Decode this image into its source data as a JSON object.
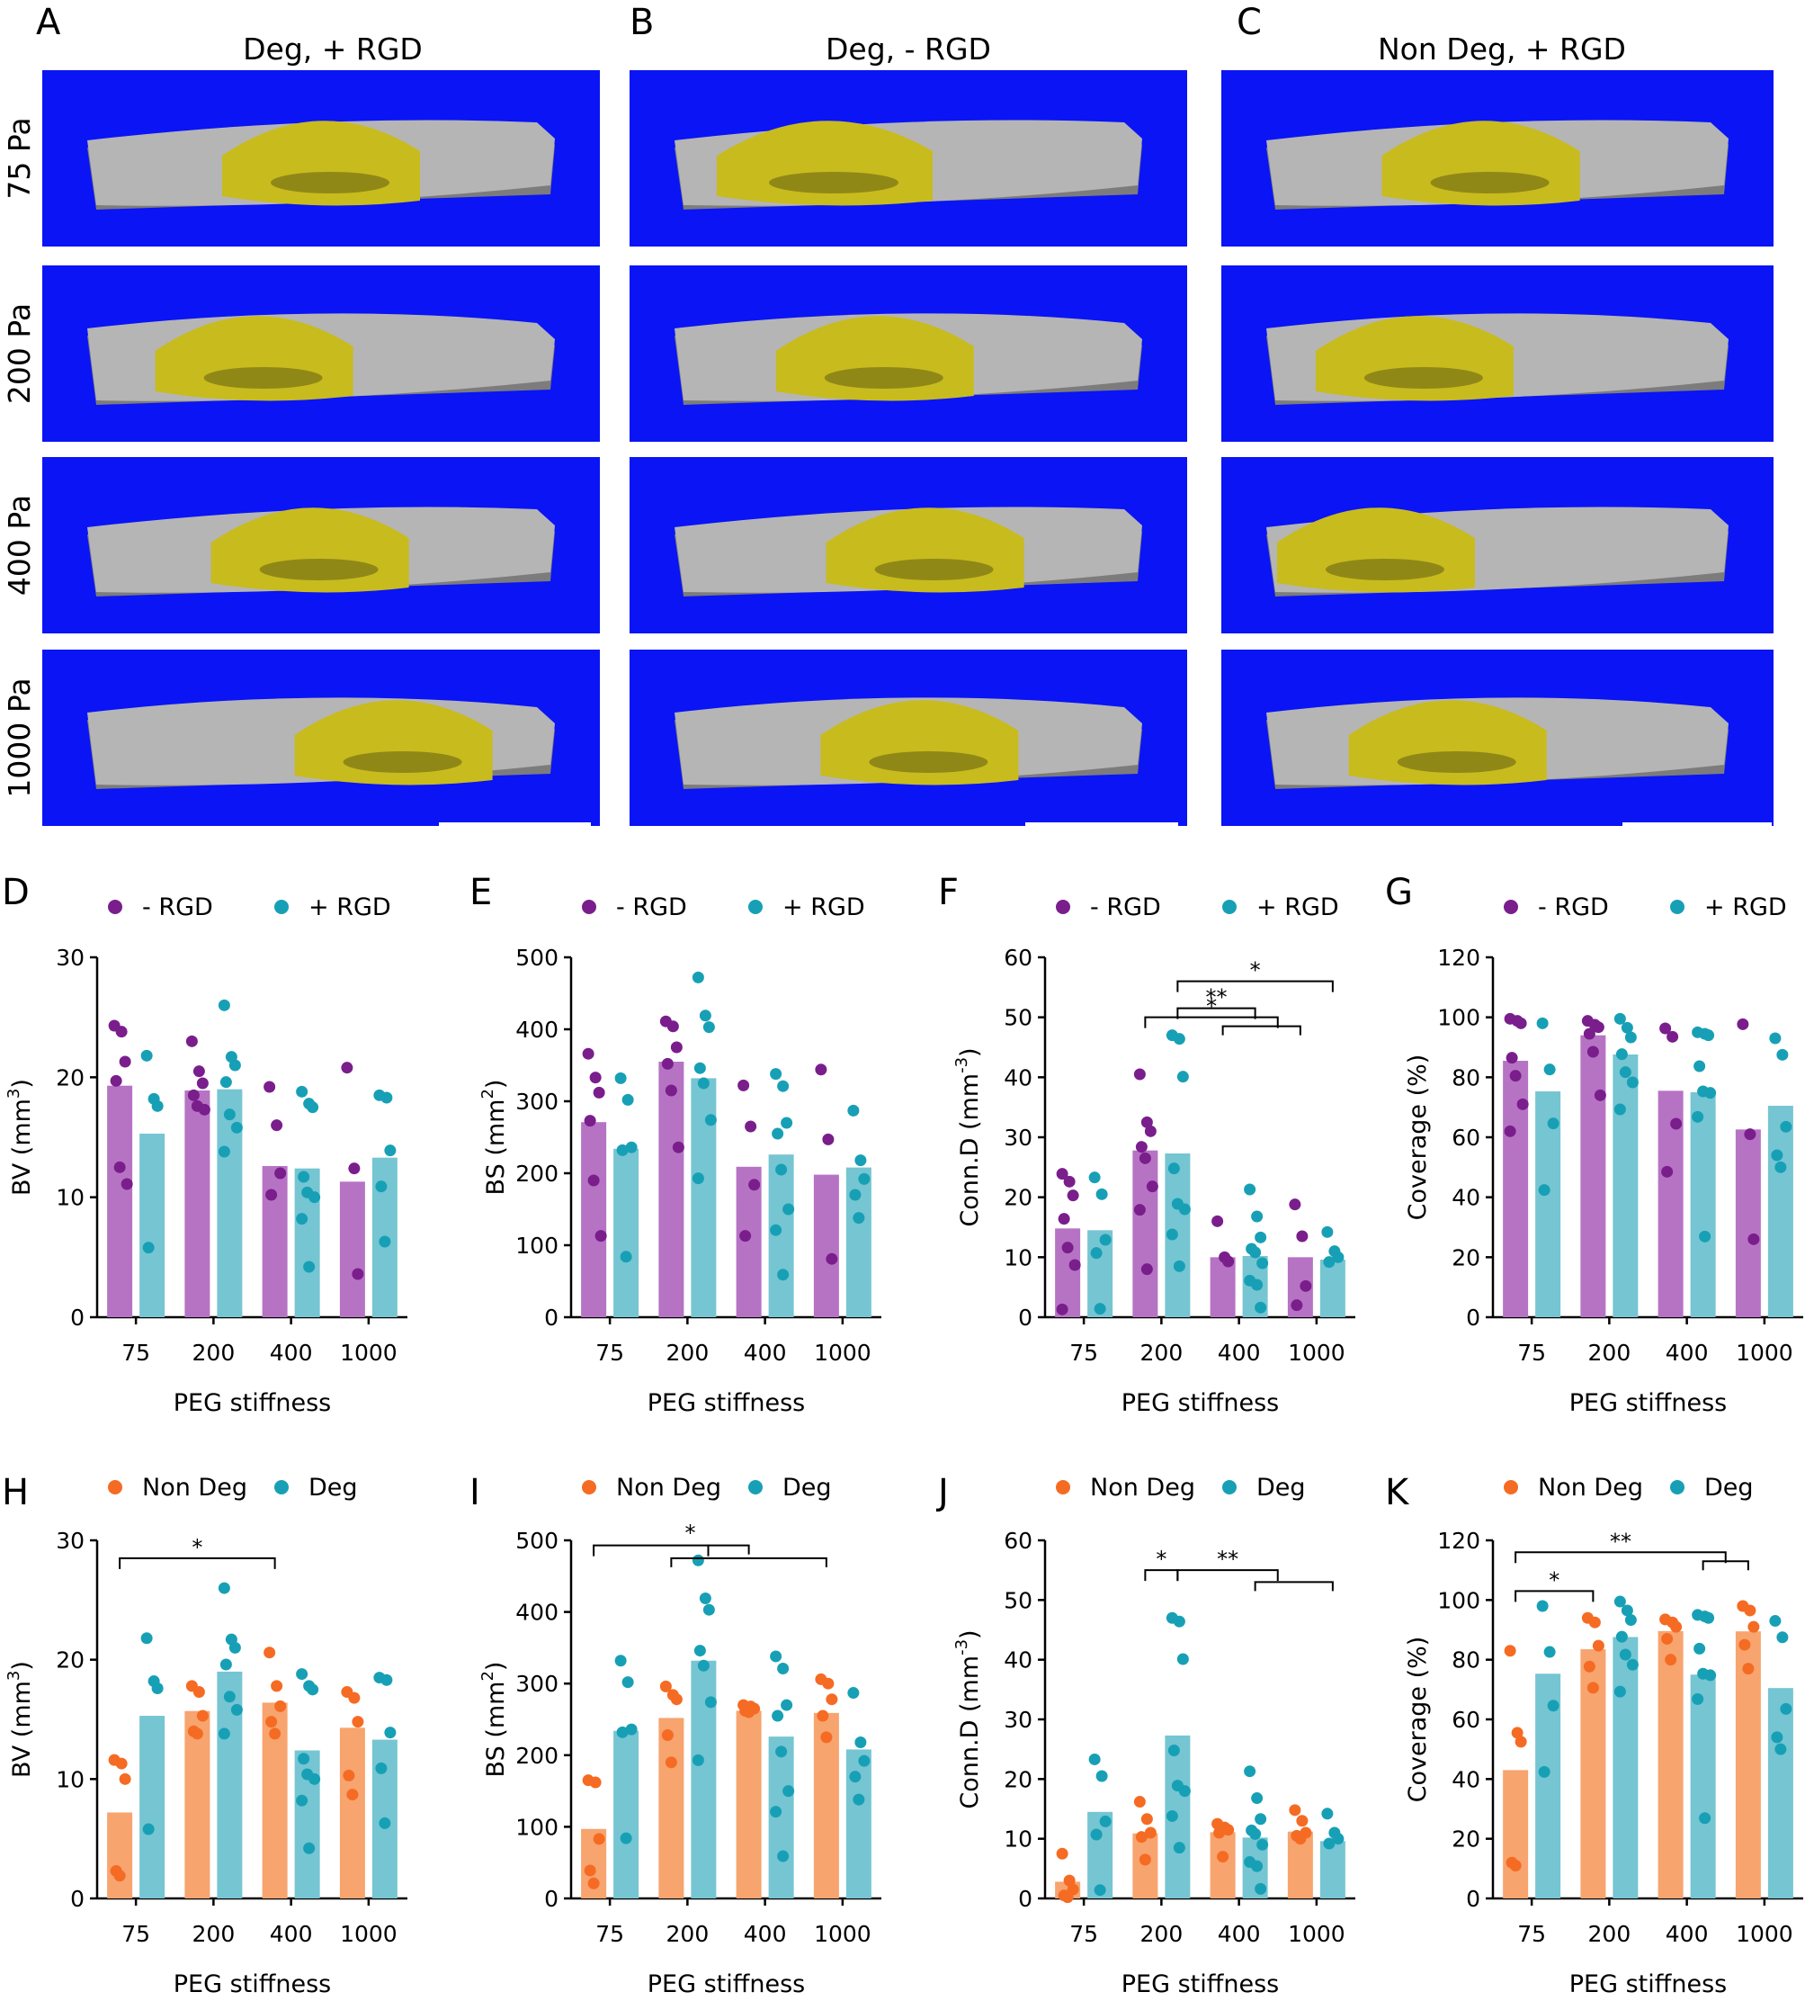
{
  "top": {
    "panel_letters": [
      "A",
      "B",
      "C"
    ],
    "column_titles": [
      "Deg, + RGD",
      "Deg, - RGD",
      "Non Deg, + RGD"
    ],
    "row_labels": [
      "75 Pa",
      "200 Pa",
      "400 Pa",
      "1000 Pa"
    ],
    "colors": {
      "background": "#0a14f5",
      "bone": "#b5b5b5",
      "bone_dark": "#7c7c7c",
      "newbone": "#c8bb1e",
      "newbone_dark": "#6b6510"
    }
  },
  "colors": {
    "purple": "#7a1e8c",
    "purple_bar": "#b673c4",
    "teal": "#17a0b5",
    "teal_bar": "#76c5d2",
    "orange": "#f56b23",
    "orange_bar": "#f7a46f"
  },
  "chart_data": [
    {
      "panel": "D",
      "type": "bar",
      "ylabel": "BV (mm",
      "ysup": "3",
      "ysuffix": ")",
      "xlabel": "PEG stiffness",
      "categories": [
        "75",
        "200",
        "400",
        "1000"
      ],
      "ylim": [
        0,
        30
      ],
      "yticks": [
        0,
        10,
        20,
        30
      ],
      "series": [
        {
          "name": "- RGD",
          "color": "purple",
          "values": [
            19.3,
            18.9,
            12.6,
            11.3
          ],
          "points": [
            [
              24.3,
              23.8,
              21.3,
              19.7,
              12.5,
              11.1
            ],
            [
              23.0,
              20.5,
              19.5,
              18.5,
              17.6,
              17.3
            ],
            [
              19.2,
              16.0,
              12.0,
              10.2
            ],
            [
              20.8,
              12.4,
              3.6
            ]
          ]
        },
        {
          "name": "+ RGD",
          "color": "teal",
          "values": [
            15.3,
            19.0,
            12.4,
            13.3
          ],
          "points": [
            [
              21.8,
              18.2,
              17.6,
              5.8
            ],
            [
              26.0,
              21.7,
              21.0,
              19.6,
              16.9,
              15.8,
              13.8
            ],
            [
              18.8,
              17.8,
              17.5,
              11.7,
              10.4,
              10.0,
              8.2,
              4.2
            ],
            [
              18.5,
              18.3,
              13.9,
              10.9,
              6.3
            ]
          ]
        }
      ],
      "brackets": []
    },
    {
      "panel": "E",
      "type": "bar",
      "ylabel": "BS (mm",
      "ysup": "2",
      "ysuffix": ")",
      "xlabel": "PEG stiffness",
      "categories": [
        "75",
        "200",
        "400",
        "1000"
      ],
      "ylim": [
        0,
        500
      ],
      "yticks": [
        0,
        100,
        200,
        300,
        400,
        500
      ],
      "series": [
        {
          "name": "- RGD",
          "color": "purple",
          "values": [
            271,
            355,
            209,
            198
          ],
          "points": [
            [
              366,
              333,
              312,
              273,
              190,
              113
            ],
            [
              411,
              404,
              375,
              352,
              315,
              236
            ],
            [
              322,
              265,
              184,
              113
            ],
            [
              344,
              247,
              81
            ]
          ]
        },
        {
          "name": "+ RGD",
          "color": "teal",
          "values": [
            234,
            332,
            226,
            208
          ],
          "points": [
            [
              332,
              302,
              236,
              232,
              84
            ],
            [
              472,
              419,
              403,
              346,
              325,
              274,
              193
            ],
            [
              338,
              321,
              270,
              255,
              205,
              150,
              121,
              59
            ],
            [
              287,
              218,
              192,
              170,
              138
            ]
          ]
        }
      ],
      "brackets": []
    },
    {
      "panel": "F",
      "type": "bar",
      "ylabel": "Conn.D (mm",
      "ysup": "-3",
      "ysuffix": ")",
      "xlabel": "PEG stiffness",
      "categories": [
        "75",
        "200",
        "400",
        "1000"
      ],
      "ylim": [
        0,
        60
      ],
      "yticks": [
        0,
        10,
        20,
        30,
        40,
        50,
        60
      ],
      "series": [
        {
          "name": "- RGD",
          "color": "purple",
          "values": [
            14.8,
            27.8,
            10.0,
            10.0
          ],
          "points": [
            [
              23.9,
              22.6,
              20.3,
              16.4,
              11.6,
              8.7,
              1.3
            ],
            [
              40.5,
              32.5,
              31.0,
              28.4,
              26.5,
              21.8,
              17.9,
              8.0
            ],
            [
              16.0,
              10.0,
              9.3
            ],
            [
              18.8,
              13.5,
              5.2,
              2.0
            ]
          ]
        },
        {
          "name": "+ RGD",
          "color": "teal",
          "values": [
            14.5,
            27.3,
            10.2,
            9.6
          ],
          "points": [
            [
              23.3,
              20.5,
              12.9,
              10.7,
              1.4
            ],
            [
              47.0,
              46.4,
              40.1,
              24.8,
              18.9,
              18.0,
              13.8,
              8.5
            ],
            [
              21.3,
              16.8,
              13.3,
              11.4,
              10.8,
              9.0,
              6.1,
              5.4,
              1.6
            ],
            [
              14.2,
              11.0,
              10.0,
              9.2
            ]
          ]
        }
      ],
      "brackets": [
        {
          "from": [
            1,
            0.2
          ],
          "to": [
            3,
            0.2
          ],
          "label": "*",
          "y": 56
        },
        {
          "from": [
            1,
            0.2
          ],
          "to": [
            2,
            0.2
          ],
          "label": "**",
          "y": 51.5
        },
        {
          "from": [
            1,
            0
          ],
          "to": [
            2.5,
            0
          ],
          "label": "*",
          "y": 50,
          "sub": [
            2,
            3,
            48.5
          ]
        }
      ]
    },
    {
      "panel": "G",
      "type": "bar",
      "ylabel": "Coverage (%)",
      "ysup": "",
      "ysuffix": "",
      "xlabel": "PEG stiffness",
      "categories": [
        "75",
        "200",
        "400",
        "1000"
      ],
      "ylim": [
        0,
        120
      ],
      "yticks": [
        0,
        20,
        40,
        60,
        80,
        100,
        120
      ],
      "series": [
        {
          "name": "- RGD",
          "color": "purple",
          "values": [
            85.5,
            94.0,
            75.5,
            62.6
          ],
          "points": [
            [
              99.5,
              98.8,
              98.0,
              86.5,
              80.5,
              71.0,
              62.0
            ],
            [
              98.8,
              97.5,
              96.7,
              94.5,
              88.5,
              74.0
            ],
            [
              96.3,
              93.5,
              64.5,
              48.5
            ],
            [
              97.7,
              61.0,
              26.0
            ]
          ]
        },
        {
          "name": "+ RGD",
          "color": "teal",
          "values": [
            75.3,
            87.6,
            75.0,
            70.5
          ],
          "points": [
            [
              98.0,
              82.6,
              64.6,
              42.4
            ],
            [
              99.5,
              96.5,
              93.3,
              87.7,
              81.7,
              78.3,
              69.3
            ],
            [
              95.0,
              94.5,
              94.0,
              83.7,
              75.3,
              74.8,
              66.8,
              26.9
            ],
            [
              93.0,
              87.5,
              63.5,
              54.0,
              50.0
            ]
          ]
        }
      ],
      "brackets": []
    },
    {
      "panel": "H",
      "type": "bar",
      "ylabel": "BV (mm",
      "ysup": "3",
      "ysuffix": ")",
      "xlabel": "PEG stiffness",
      "categories": [
        "75",
        "200",
        "400",
        "1000"
      ],
      "ylim": [
        0,
        30
      ],
      "yticks": [
        0,
        10,
        20,
        30
      ],
      "series": [
        {
          "name": "Non Deg",
          "color": "orange",
          "values": [
            7.2,
            15.7,
            16.4,
            14.3
          ],
          "points": [
            [
              11.6,
              11.3,
              10.0,
              2.3,
              1.9
            ],
            [
              17.8,
              17.3,
              15.3,
              14.0,
              13.8
            ],
            [
              20.6,
              17.8,
              16.1,
              14.8,
              13.8
            ],
            [
              17.3,
              16.8,
              14.8,
              10.3,
              8.7
            ]
          ]
        },
        {
          "name": "Deg",
          "color": "teal",
          "values": [
            15.3,
            19.0,
            12.4,
            13.3
          ],
          "points": [
            [
              21.8,
              18.2,
              17.6,
              5.8
            ],
            [
              26.0,
              21.7,
              21.0,
              19.6,
              16.9,
              15.8,
              13.8
            ],
            [
              18.8,
              17.8,
              17.5,
              11.7,
              10.4,
              10.0,
              8.2,
              4.2
            ],
            [
              18.5,
              18.3,
              13.9,
              10.9,
              6.3
            ]
          ]
        }
      ],
      "brackets": [
        {
          "from": [
            0,
            0
          ],
          "to": [
            2,
            0
          ],
          "label": "*",
          "y": 28.5
        }
      ]
    },
    {
      "panel": "I",
      "type": "bar",
      "ylabel": "BS (mm",
      "ysup": "2",
      "ysuffix": ")",
      "xlabel": "PEG stiffness",
      "categories": [
        "75",
        "200",
        "400",
        "1000"
      ],
      "ylim": [
        0,
        500
      ],
      "yticks": [
        0,
        100,
        200,
        300,
        400,
        500
      ],
      "series": [
        {
          "name": "Non Deg",
          "color": "orange",
          "values": [
            97,
            252,
            262,
            259
          ],
          "points": [
            [
              165,
              162,
              83,
              39,
              21
            ],
            [
              296,
              284,
              278,
              228,
              190
            ],
            [
              270,
              268,
              265,
              262,
              260
            ],
            [
              306,
              300,
              278,
              255,
              225
            ]
          ]
        },
        {
          "name": "Deg",
          "color": "teal",
          "values": [
            234,
            332,
            226,
            208
          ],
          "points": [
            [
              332,
              302,
              236,
              232,
              84
            ],
            [
              472,
              419,
              403,
              346,
              325,
              274,
              193
            ],
            [
              338,
              321,
              270,
              255,
              205,
              150,
              121,
              59
            ],
            [
              287,
              218,
              192,
              170,
              138
            ]
          ]
        }
      ],
      "brackets": [
        {
          "from": [
            0,
            0
          ],
          "to": [
            2,
            0
          ],
          "label": "",
          "y": 493
        },
        {
          "from": [
            1,
            0
          ],
          "to": [
            3,
            0
          ],
          "label": "",
          "y": 475,
          "center": [
            1,
            2
          ]
        },
        {
          "label": "*",
          "x": [
            1,
            2
          ],
          "y": 498,
          "text_only": true
        }
      ]
    },
    {
      "panel": "J",
      "type": "bar",
      "ylabel": "Conn.D (mm",
      "ysup": "-3",
      "ysuffix": ")",
      "xlabel": "PEG stiffness",
      "categories": [
        "75",
        "200",
        "400",
        "1000"
      ],
      "ylim": [
        0,
        60
      ],
      "yticks": [
        0,
        10,
        20,
        30,
        40,
        50,
        60
      ],
      "series": [
        {
          "name": "Non Deg",
          "color": "orange",
          "values": [
            2.8,
            10.9,
            11.1,
            11.2
          ],
          "points": [
            [
              7.5,
              3.0,
              1.5,
              0.5,
              0.2
            ],
            [
              16.2,
              13.3,
              11.0,
              10.3,
              6.5
            ],
            [
              12.5,
              11.9,
              11.5,
              11.0,
              7.0
            ],
            [
              14.8,
              13.0,
              11.0,
              10.5,
              10.0
            ]
          ]
        },
        {
          "name": "Deg",
          "color": "teal",
          "values": [
            14.5,
            27.3,
            10.2,
            9.6
          ],
          "points": [
            [
              23.3,
              20.5,
              12.9,
              10.7,
              1.4
            ],
            [
              47.0,
              46.4,
              40.1,
              24.8,
              18.9,
              18.0,
              13.8,
              8.5
            ],
            [
              21.3,
              16.8,
              13.3,
              11.4,
              10.8,
              9.0,
              6.1,
              5.4,
              1.6
            ],
            [
              14.2,
              11.0,
              10.0,
              9.2
            ]
          ]
        }
      ],
      "brackets": [
        {
          "label": "*",
          "type": "pair"
        },
        {
          "label": "**",
          "type": "multi"
        }
      ]
    },
    {
      "panel": "K",
      "type": "bar",
      "ylabel": "Coverage (%)",
      "ysup": "",
      "ysuffix": "",
      "xlabel": "PEG stiffness",
      "categories": [
        "75",
        "200",
        "400",
        "1000"
      ],
      "ylim": [
        0,
        120
      ],
      "yticks": [
        0,
        20,
        40,
        60,
        80,
        100,
        120
      ],
      "series": [
        {
          "name": "Non Deg",
          "color": "orange",
          "values": [
            43.0,
            83.5,
            89.6,
            89.5
          ],
          "points": [
            [
              83.0,
              55.5,
              52.5,
              12.0,
              11.0
            ],
            [
              94.0,
              92.5,
              84.7,
              77.7,
              70.6
            ],
            [
              93.5,
              92.5,
              91.0,
              87.0,
              80.0
            ],
            [
              98.0,
              96.5,
              91.0,
              85.0,
              77.0
            ]
          ]
        },
        {
          "name": "Deg",
          "color": "teal",
          "values": [
            75.3,
            87.6,
            75.0,
            70.5
          ],
          "points": [
            [
              98.0,
              82.6,
              64.6,
              42.4
            ],
            [
              99.5,
              96.5,
              93.3,
              87.7,
              81.7,
              78.3,
              69.3
            ],
            [
              95.0,
              94.5,
              94.0,
              83.7,
              75.3,
              74.8,
              66.8,
              26.9
            ],
            [
              93.0,
              87.5,
              63.5,
              54.0,
              50.0
            ]
          ]
        }
      ],
      "brackets": [
        {
          "label": "*",
          "type": "pair75-200"
        },
        {
          "label": "**",
          "type": "multi"
        }
      ]
    }
  ]
}
